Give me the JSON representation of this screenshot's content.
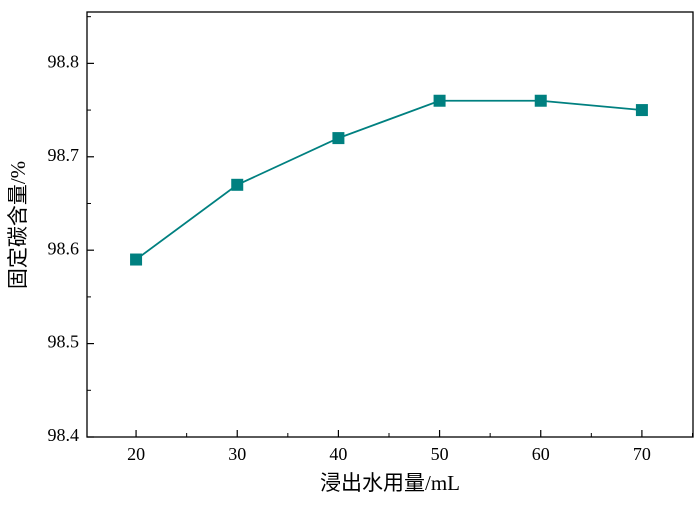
{
  "chart_data": {
    "type": "line",
    "x_label": "浸出水用量/mL",
    "y_label": "固定碳含量/%",
    "x": [
      20,
      30,
      40,
      50,
      60,
      70
    ],
    "series": [
      {
        "name": "固定碳含量",
        "color": "#008080",
        "values": [
          98.59,
          98.67,
          98.72,
          98.76,
          98.76,
          98.75
        ]
      }
    ],
    "xlim": [
      15.15,
      75.05
    ],
    "xticks": [
      20,
      30,
      40,
      50,
      60,
      70
    ],
    "xminorticks": [
      25,
      35,
      45,
      55,
      65,
      75
    ],
    "ylim": [
      98.4,
      98.855
    ],
    "yticks": [
      98.4,
      98.5,
      98.6,
      98.7,
      98.8
    ],
    "yminorticks": [
      98.45,
      98.55,
      98.65,
      98.75,
      98.85
    ],
    "marker": "square",
    "grid": false
  }
}
